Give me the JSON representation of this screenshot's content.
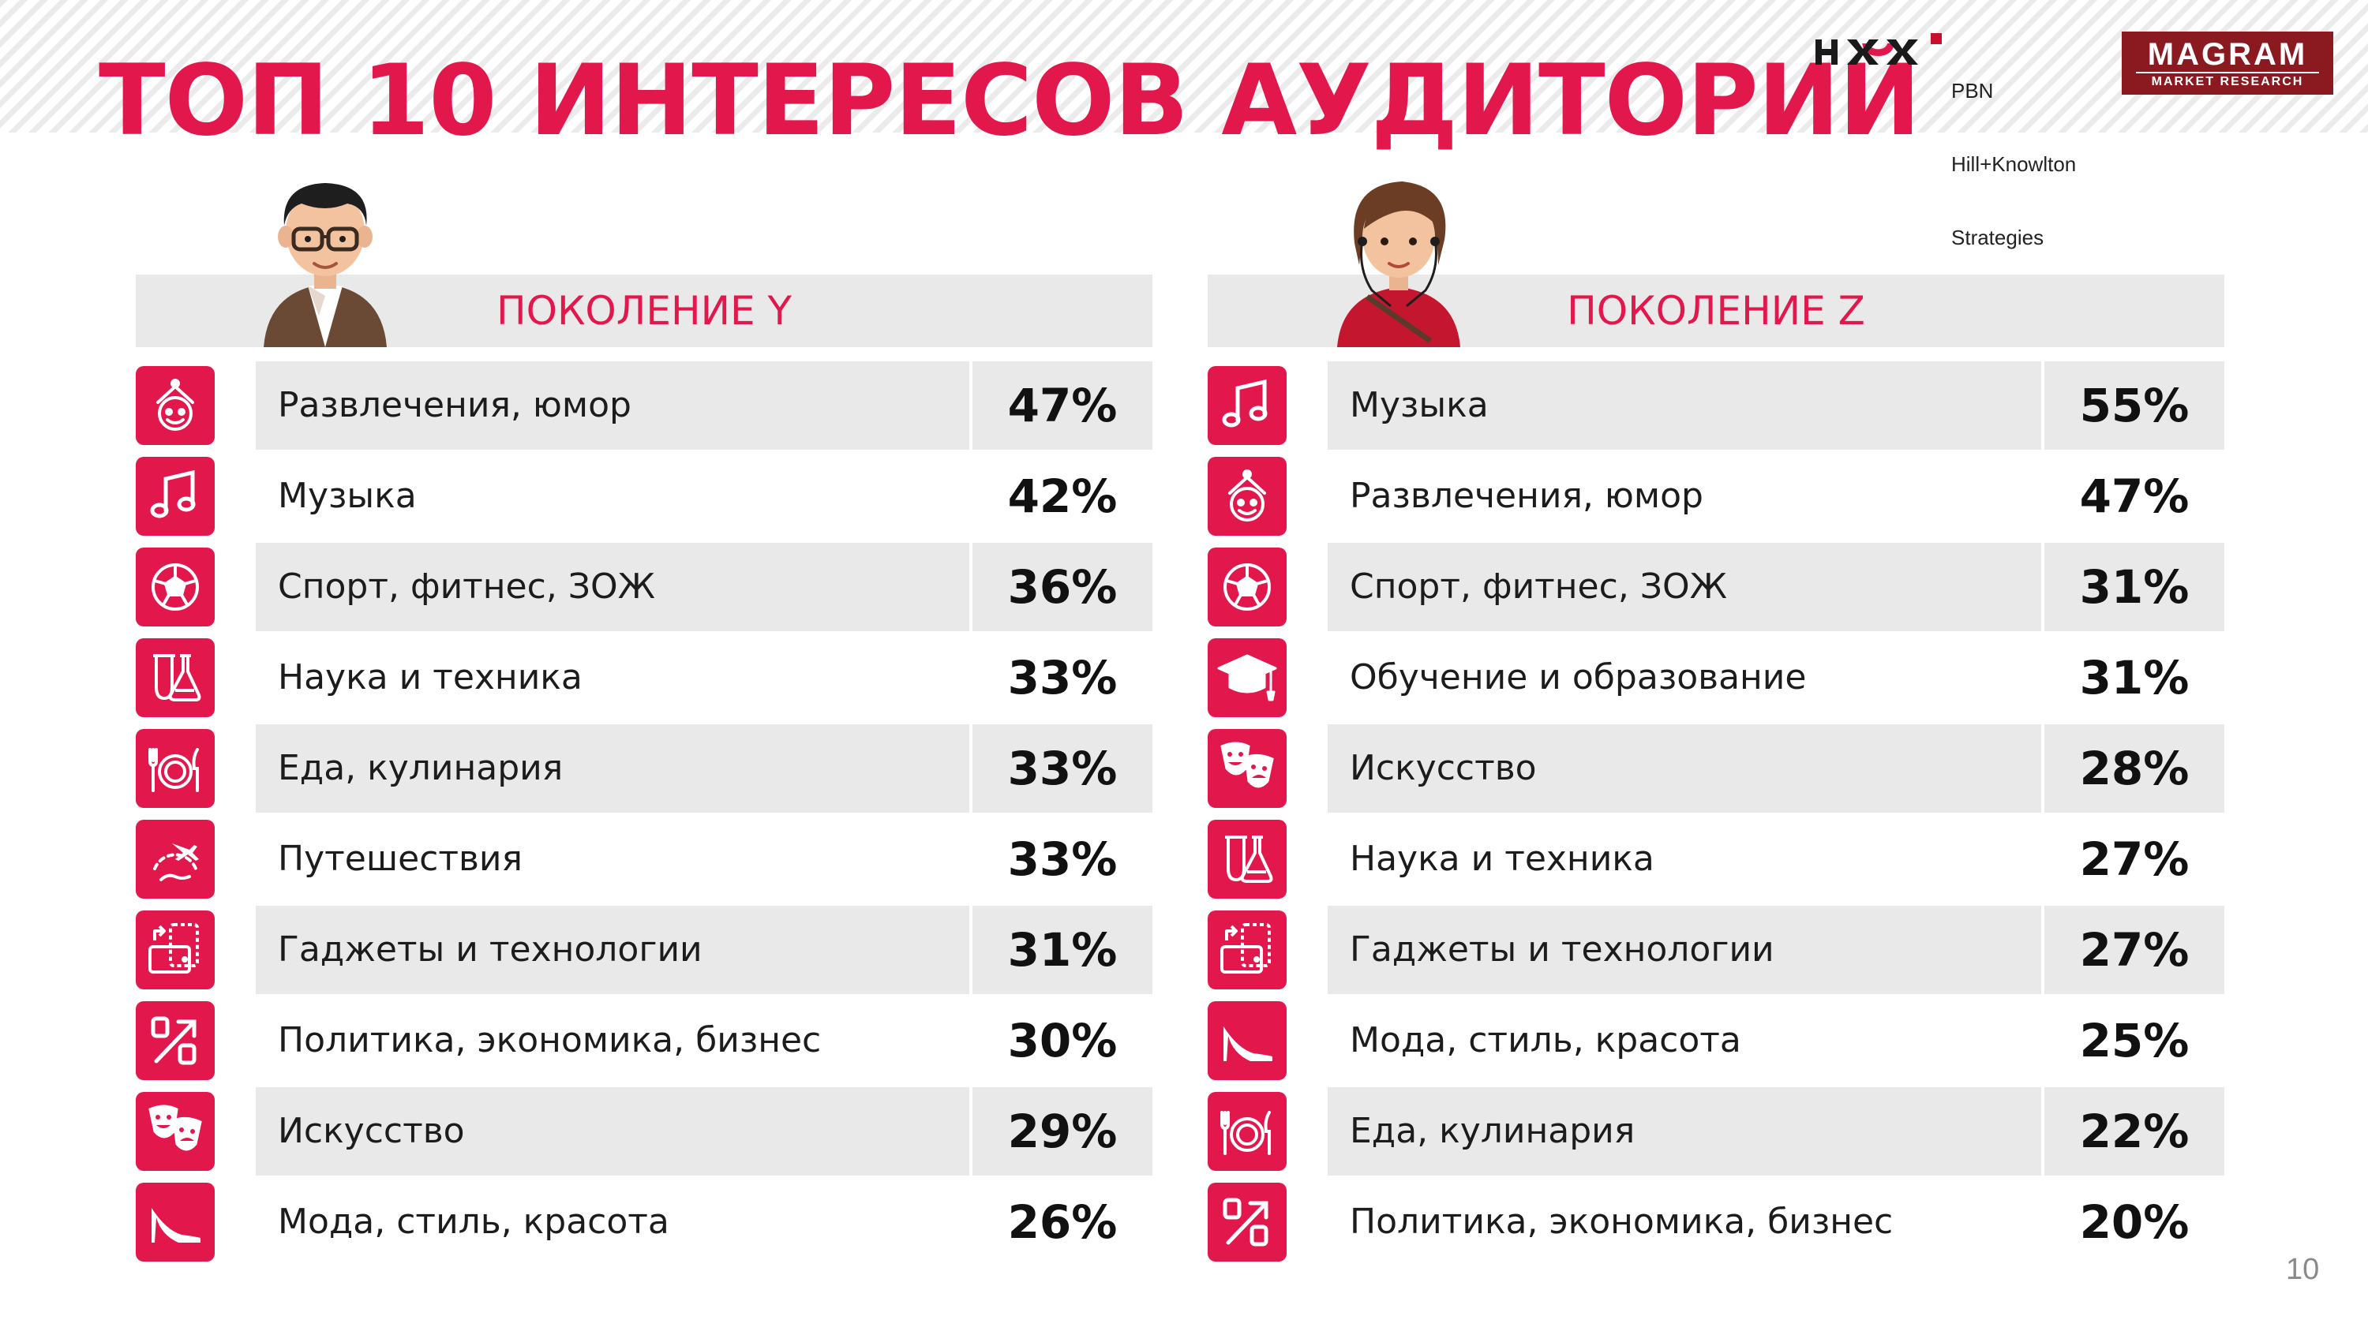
{
  "header": {
    "title": "ТОП 10 ИНТЕРЕСОВ АУДИТОРИЙ",
    "logo_pbn": [
      "PBN",
      "Hill+Knowlton",
      "Strategies"
    ],
    "logo_magram": {
      "main": "MAGRAM",
      "sub": "MARKET RESEARCH"
    }
  },
  "page_number": "10",
  "colors": {
    "accent": "#e2184c",
    "row_shade": "#e9e9e9",
    "magram": "#8a1a1f"
  },
  "chart_data": [
    {
      "type": "table",
      "title": "ПОКОЛЕНИЕ Y",
      "unit": "%",
      "rows": [
        {
          "label": "Развлечения, юмор",
          "value": 47,
          "display": "47%",
          "icon": "jester-icon"
        },
        {
          "label": "Музыка",
          "value": 42,
          "display": "42%",
          "icon": "music-note-icon"
        },
        {
          "label": "Спорт, фитнес, ЗОЖ",
          "value": 36,
          "display": "36%",
          "icon": "soccer-ball-icon"
        },
        {
          "label": "Наука и техника",
          "value": 33,
          "display": "33%",
          "icon": "flask-icon"
        },
        {
          "label": "Еда, кулинария",
          "value": 33,
          "display": "33%",
          "icon": "plate-cutlery-icon"
        },
        {
          "label": "Путешествия",
          "value": 33,
          "display": "33%",
          "icon": "globe-plane-icon"
        },
        {
          "label": "Гаджеты и технологии",
          "value": 31,
          "display": "31%",
          "icon": "devices-icon"
        },
        {
          "label": "Политика, экономика, бизнес",
          "value": 30,
          "display": "30%",
          "icon": "percent-arrow-icon"
        },
        {
          "label": "Искусство",
          "value": 29,
          "display": "29%",
          "icon": "theater-masks-icon"
        },
        {
          "label": "Мода, стиль, красота",
          "value": 26,
          "display": "26%",
          "icon": "high-heel-icon"
        }
      ]
    },
    {
      "type": "table",
      "title": "ПОКОЛЕНИЕ Z",
      "unit": "%",
      "rows": [
        {
          "label": "Музыка",
          "value": 55,
          "display": "55%",
          "icon": "music-note-icon"
        },
        {
          "label": "Развлечения, юмор",
          "value": 47,
          "display": "47%",
          "icon": "jester-icon"
        },
        {
          "label": "Спорт, фитнес, ЗОЖ",
          "value": 31,
          "display": "31%",
          "icon": "soccer-ball-icon"
        },
        {
          "label": "Обучение и образование",
          "value": 31,
          "display": "31%",
          "icon": "graduation-cap-icon"
        },
        {
          "label": "Искусство",
          "value": 28,
          "display": "28%",
          "icon": "theater-masks-icon"
        },
        {
          "label": "Наука и техника",
          "value": 27,
          "display": "27%",
          "icon": "flask-icon"
        },
        {
          "label": "Гаджеты и технологии",
          "value": 27,
          "display": "27%",
          "icon": "devices-icon"
        },
        {
          "label": "Мода, стиль, красота",
          "value": 25,
          "display": "25%",
          "icon": "high-heel-icon"
        },
        {
          "label": "Еда, кулинария",
          "value": 22,
          "display": "22%",
          "icon": "plate-cutlery-icon"
        },
        {
          "label": "Политика, экономика, бизнес",
          "value": 20,
          "display": "20%",
          "icon": "percent-arrow-icon"
        }
      ]
    }
  ]
}
